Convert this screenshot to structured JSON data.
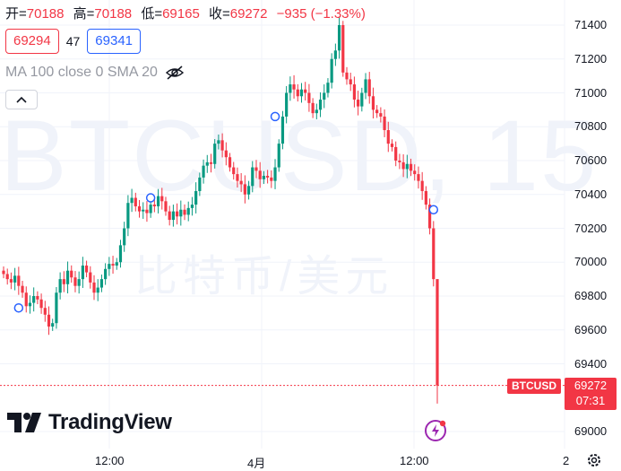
{
  "header": {
    "open_label": "开=",
    "open": "70188",
    "high_label": "高=",
    "high": "70188",
    "low_label": "低=",
    "low": "69165",
    "close_label": "收=",
    "close": "69272",
    "change": "−935 (−1.33%)"
  },
  "quote": {
    "bid": "69294",
    "spread": "47",
    "ask": "69341"
  },
  "indicator": {
    "label": "MA 100 close 0 SMA 20"
  },
  "watermark": {
    "symbol": "BTCUSD, 15",
    "name": "比特币/美元"
  },
  "logo": {
    "text": "TradingView"
  },
  "last_price": {
    "symbol": "BTCUSD",
    "price": "69272",
    "countdown": "07:31"
  },
  "colors": {
    "up": "#089981",
    "down": "#f23645",
    "ask": "#2962ff"
  },
  "icons": [
    "eye-off-icon",
    "chevron-up-icon",
    "tradingview-logo-icon",
    "lightning-icon",
    "settings-icon"
  ],
  "chart_data": {
    "type": "candlestick",
    "ylim": [
      69000,
      71500
    ],
    "y_ticks": [
      "71400",
      "71200",
      "71000",
      "70800",
      "70600",
      "70400",
      "70200",
      "70000",
      "69800",
      "69600",
      "69400",
      "69000"
    ],
    "x_ticks": [
      "12:00",
      "4月",
      "12:00",
      "2"
    ],
    "close_series": [
      69930,
      69900,
      69880,
      69920,
      69860,
      69820,
      69740,
      69760,
      69800,
      69780,
      69730,
      69690,
      69620,
      69640,
      69820,
      69900,
      69870,
      69950,
      69910,
      69860,
      69900,
      69980,
      69940,
      69880,
      69820,
      69850,
      69900,
      69960,
      69990,
      69980,
      70000,
      70100,
      70200,
      70350,
      70380,
      70330,
      70300,
      70310,
      70290,
      70340,
      70330,
      70390,
      70360,
      70300,
      70250,
      70300,
      70270,
      70310,
      70280,
      70320,
      70340,
      70420,
      70500,
      70570,
      70590,
      70580,
      70700,
      70720,
      70660,
      70620,
      70560,
      70520,
      70480,
      70460,
      70400,
      70450,
      70560,
      70540,
      70490,
      70510,
      70500,
      70480,
      70560,
      70700,
      70860,
      71000,
      71050,
      71020,
      70980,
      71020,
      71000,
      70940,
      70880,
      70900,
      70960,
      71000,
      71060,
      71200,
      71250,
      71400,
      71120,
      71080,
      71050,
      70960,
      70920,
      71000,
      71080,
      70980,
      70900,
      70880,
      70860,
      70780,
      70700,
      70680,
      70600,
      70590,
      70550,
      70580,
      70540,
      70520,
      70480,
      70420,
      70340,
      70200,
      69900,
      69272
    ],
    "markers": [
      {
        "index": 4,
        "value": 69730
      },
      {
        "index": 39,
        "value": 70380
      },
      {
        "index": 72,
        "value": 70860
      },
      {
        "index": 114,
        "value": 70310
      }
    ],
    "last_value": 69272
  }
}
